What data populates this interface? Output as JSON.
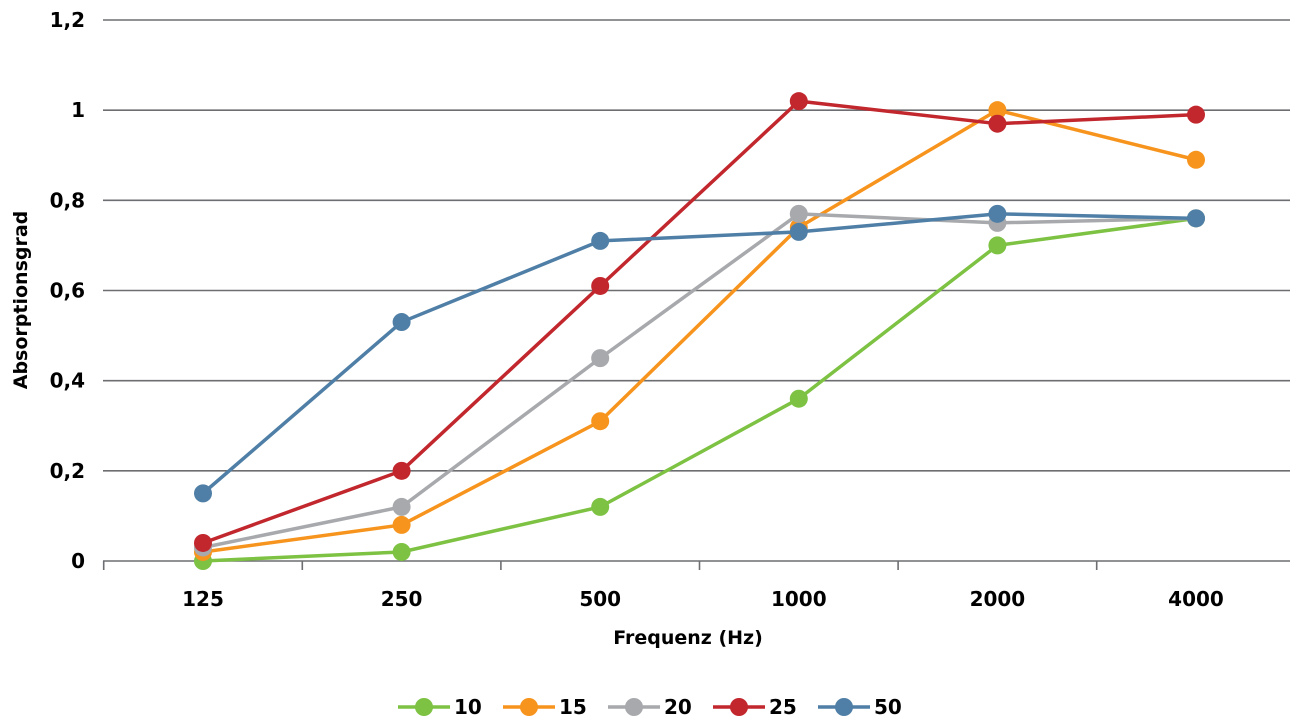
{
  "chart_data": {
    "type": "line",
    "title": "",
    "xlabel": "Frequenz (Hz)",
    "ylabel": "Absorptionsgrad",
    "categories": [
      "125",
      "250",
      "500",
      "1000",
      "2000",
      "4000"
    ],
    "y_ticks": [
      "0",
      "0,2",
      "0,4",
      "0,6",
      "0,8",
      "1",
      "1,2"
    ],
    "y_tick_values": [
      0,
      0.2,
      0.4,
      0.6,
      0.8,
      1.0,
      1.2
    ],
    "ylim": [
      0,
      1.2
    ],
    "grid": "horizontal",
    "legend_position": "bottom",
    "series": [
      {
        "name": "10",
        "color": "#7DC242",
        "values": [
          0.0,
          0.02,
          0.12,
          0.36,
          0.7,
          0.76
        ]
      },
      {
        "name": "15",
        "color": "#F7941D",
        "values": [
          0.02,
          0.08,
          0.31,
          0.74,
          1.0,
          0.89
        ]
      },
      {
        "name": "20",
        "color": "#A7A9AC",
        "values": [
          0.03,
          0.12,
          0.45,
          0.77,
          0.75,
          0.76
        ]
      },
      {
        "name": "25",
        "color": "#C1272D",
        "values": [
          0.04,
          0.2,
          0.61,
          1.02,
          0.97,
          0.99
        ]
      },
      {
        "name": "50",
        "color": "#4F7FA6",
        "values": [
          0.15,
          0.53,
          0.71,
          0.73,
          0.77,
          0.76
        ]
      }
    ]
  }
}
